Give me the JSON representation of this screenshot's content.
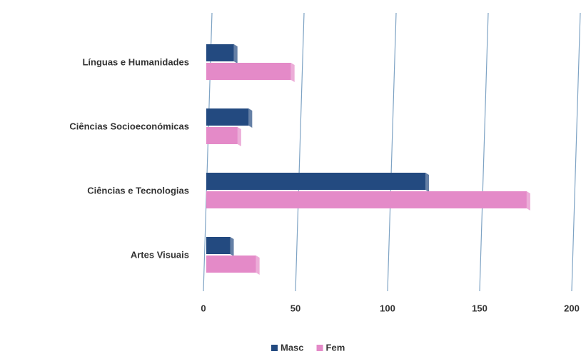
{
  "chart_data": {
    "type": "hbar",
    "categories": [
      "Línguas e Humanidades",
      "Ciências Socioeconómicas",
      "Ciências e Tecnologias",
      "Artes Visuais"
    ],
    "series": [
      {
        "name": "Masc",
        "color": "#234a80",
        "values": [
          15,
          23,
          119,
          13
        ]
      },
      {
        "name": "Fem",
        "color": "#e48ac8",
        "values": [
          46,
          17,
          174,
          27
        ]
      }
    ],
    "xlim": [
      0,
      200
    ],
    "xticks": [
      0,
      50,
      100,
      150,
      200
    ],
    "grid": true,
    "legend": "bottom"
  }
}
